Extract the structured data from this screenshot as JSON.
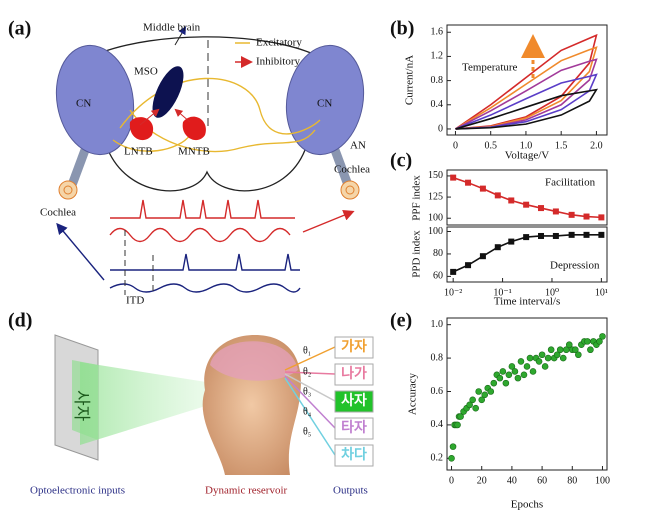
{
  "panel_a": {
    "label": "(a)",
    "middle_brain": "Middle brain",
    "excitatory": "Excitatory",
    "inhibitory": "Inhibitory",
    "mso": "MSO",
    "cn_left": "CN",
    "cn_right": "CN",
    "lntb": "LNTB",
    "mntb": "MNTB",
    "an": "AN",
    "cochlea_right": "Cochlea",
    "cochlea_left": "Cochlea",
    "itd": "ITD"
  },
  "panel_d": {
    "label": "(d)",
    "screen_text": "사자",
    "thetas": [
      "θ₁",
      "θ₂",
      "θ₃",
      "θ₄",
      "θ₅"
    ],
    "outputs": [
      "가자",
      "나가",
      "사자",
      "타자",
      "차다"
    ],
    "caption_inputs": "Optoelectronic inputs",
    "caption_reservoir": "Dynamic reservoir",
    "caption_outputs": "Outputs"
  },
  "chart_data": [
    {
      "type": "line",
      "panel_label": "(b)",
      "x_label": "Voltage/V",
      "y_label": "Current/nA",
      "annotation": "Temperature",
      "annotation_color": "#2b2f86",
      "xlim": [
        -0.12,
        2.15
      ],
      "ylim": [
        -0.1,
        1.72
      ],
      "xticks": [
        0,
        0.5,
        {
          "value": 1,
          "label": "1.0"
        },
        1.5,
        {
          "value": 2,
          "label": "2.0"
        }
      ],
      "yticks": [
        0,
        0.4,
        0.8,
        1.2,
        1.6
      ],
      "x": [
        0,
        0.5,
        1,
        1.5,
        1.9,
        2,
        1.9,
        1.5,
        1,
        0.5,
        0
      ],
      "series": [
        {
          "color": "#d42a2a",
          "values": [
            0,
            0.05,
            0.2,
            0.54,
            1.09,
            1.55,
            1.5,
            1.3,
            0.85,
            0.4,
            0
          ]
        },
        {
          "color": "#f08a2c",
          "values": [
            0,
            0.04,
            0.18,
            0.47,
            0.95,
            1.35,
            1.31,
            1.13,
            0.74,
            0.35,
            0
          ]
        },
        {
          "color": "#a23a9a",
          "values": [
            0,
            0.03,
            0.15,
            0.4,
            0.81,
            1.15,
            1.12,
            0.97,
            0.63,
            0.3,
            0
          ]
        },
        {
          "color": "#5a3ec8",
          "values": [
            0,
            0.03,
            0.12,
            0.32,
            0.63,
            0.9,
            0.87,
            0.76,
            0.5,
            0.23,
            0
          ]
        },
        {
          "color": "#111111",
          "values": [
            0,
            0.02,
            0.08,
            0.23,
            0.46,
            0.65,
            0.63,
            0.55,
            0.36,
            0.17,
            0
          ]
        }
      ]
    },
    {
      "type": "line",
      "panel_label": "(c)",
      "y_label": "PPF index",
      "annotation": "Facilitation",
      "annotation_color": "#d42a2a",
      "xscale": "log",
      "xlim": [
        0.0075,
        13
      ],
      "ylim": [
        92,
        157
      ],
      "yticks": [
        100,
        125,
        150
      ],
      "x": [
        0.01,
        0.02,
        0.04,
        0.08,
        0.15,
        0.3,
        0.6,
        1.2,
        2.5,
        5,
        10
      ],
      "series": [
        {
          "color": "#d42a2a",
          "marker": "square",
          "values": [
            148,
            142,
            135,
            127,
            121,
            116,
            112,
            108,
            104,
            102,
            101
          ]
        }
      ]
    },
    {
      "type": "line",
      "x_label": "Time interval/s",
      "y_label": "PPD index",
      "annotation": "Depression",
      "annotation_color": "#111111",
      "xscale": "log",
      "xlim": [
        0.0075,
        13
      ],
      "ylim": [
        55,
        104
      ],
      "yticks": [
        60,
        80,
        100
      ],
      "xticks": [
        {
          "value": 0.01,
          "label": "10⁻²"
        },
        {
          "value": 0.1,
          "label": "10⁻¹"
        },
        {
          "value": 1,
          "label": "10⁰"
        },
        {
          "value": 10,
          "label": "10¹"
        }
      ],
      "x": [
        0.01,
        0.02,
        0.04,
        0.08,
        0.15,
        0.3,
        0.6,
        1.2,
        2.5,
        5,
        10
      ],
      "series": [
        {
          "color": "#111111",
          "marker": "square",
          "values": [
            64,
            70,
            78,
            86,
            91,
            95,
            96,
            96,
            97,
            97,
            97
          ]
        }
      ]
    },
    {
      "type": "scatter",
      "panel_label": "(e)",
      "x_label": "Epochs",
      "y_label": "Accuracy",
      "xlim": [
        -3,
        103
      ],
      "ylim": [
        0.13,
        1.04
      ],
      "xticks": [
        0,
        20,
        40,
        60,
        80,
        100
      ],
      "yticks": [
        0.2,
        0.4,
        0.6,
        0.8,
        {
          "value": 1,
          "label": "1.0"
        }
      ],
      "x": [
        0,
        1,
        2,
        3,
        4,
        5,
        6,
        8,
        10,
        12,
        14,
        16,
        18,
        20,
        22,
        24,
        26,
        28,
        30,
        32,
        34,
        36,
        38,
        40,
        42,
        44,
        46,
        48,
        50,
        52,
        54,
        56,
        58,
        60,
        62,
        64,
        66,
        68,
        70,
        72,
        74,
        76,
        78,
        80,
        82,
        84,
        86,
        88,
        90,
        92,
        94,
        96,
        98,
        100
      ],
      "series": [
        {
          "color": "#2ea82e",
          "values": [
            0.2,
            0.27,
            0.4,
            0.4,
            0.4,
            0.45,
            0.45,
            0.48,
            0.5,
            0.52,
            0.55,
            0.5,
            0.6,
            0.55,
            0.58,
            0.62,
            0.6,
            0.65,
            0.7,
            0.68,
            0.72,
            0.65,
            0.7,
            0.75,
            0.72,
            0.68,
            0.78,
            0.7,
            0.75,
            0.8,
            0.72,
            0.8,
            0.78,
            0.82,
            0.75,
            0.8,
            0.85,
            0.8,
            0.82,
            0.85,
            0.8,
            0.85,
            0.88,
            0.85,
            0.85,
            0.82,
            0.88,
            0.9,
            0.9,
            0.85,
            0.9,
            0.88,
            0.9,
            0.93
          ]
        }
      ]
    }
  ]
}
